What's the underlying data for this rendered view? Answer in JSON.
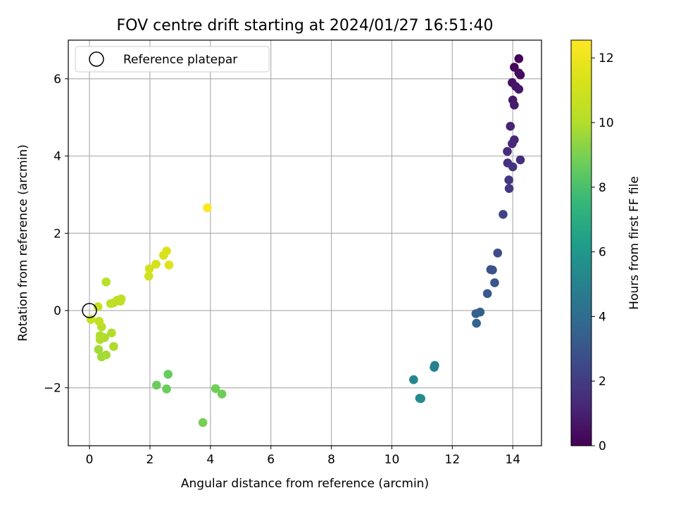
{
  "chart_data": {
    "type": "scatter",
    "title": "FOV centre drift starting at 2024/01/27 16:51:40",
    "xlabel": "Angular distance from reference (arcmin)",
    "ylabel": "Rotation from reference (arcmin)",
    "xlim": [
      -0.7,
      14.95
    ],
    "ylim": [
      -3.5,
      7.0
    ],
    "xticks": [
      0,
      2,
      4,
      6,
      8,
      10,
      12,
      14
    ],
    "yticks": [
      -2,
      0,
      2,
      4,
      6
    ],
    "grid": true,
    "legend": {
      "location": "upper-left",
      "entries": [
        "Reference platepar"
      ]
    },
    "reference_point": {
      "x": 0,
      "y": 0
    },
    "colorbar": {
      "label": "Hours from first FF file",
      "colormap": "viridis",
      "range": [
        0,
        12.55
      ],
      "ticks": [
        0,
        2,
        4,
        6,
        8,
        10,
        12
      ]
    },
    "points": [
      {
        "x": 14.2,
        "y": 6.52,
        "c": 0.1
      },
      {
        "x": 14.05,
        "y": 6.3,
        "c": 0.2
      },
      {
        "x": 14.2,
        "y": 6.15,
        "c": 0.3
      },
      {
        "x": 14.25,
        "y": 6.1,
        "c": 0.4
      },
      {
        "x": 13.98,
        "y": 5.9,
        "c": 0.5
      },
      {
        "x": 14.1,
        "y": 5.8,
        "c": 0.6
      },
      {
        "x": 14.2,
        "y": 5.73,
        "c": 0.7
      },
      {
        "x": 14.0,
        "y": 5.45,
        "c": 0.8
      },
      {
        "x": 14.05,
        "y": 5.32,
        "c": 0.9
      },
      {
        "x": 13.92,
        "y": 4.77,
        "c": 1.1
      },
      {
        "x": 14.05,
        "y": 4.42,
        "c": 1.2
      },
      {
        "x": 13.98,
        "y": 4.32,
        "c": 1.3
      },
      {
        "x": 13.82,
        "y": 4.12,
        "c": 1.4
      },
      {
        "x": 14.25,
        "y": 3.9,
        "c": 1.5
      },
      {
        "x": 13.83,
        "y": 3.82,
        "c": 1.6
      },
      {
        "x": 14.0,
        "y": 3.72,
        "c": 1.7
      },
      {
        "x": 13.87,
        "y": 3.38,
        "c": 1.8
      },
      {
        "x": 13.88,
        "y": 3.16,
        "c": 1.9
      },
      {
        "x": 13.68,
        "y": 2.49,
        "c": 2.3
      },
      {
        "x": 13.5,
        "y": 1.49,
        "c": 2.6
      },
      {
        "x": 13.27,
        "y": 1.06,
        "c": 2.8
      },
      {
        "x": 13.33,
        "y": 1.05,
        "c": 2.9
      },
      {
        "x": 13.4,
        "y": 0.72,
        "c": 3.0
      },
      {
        "x": 13.16,
        "y": 0.44,
        "c": 3.2
      },
      {
        "x": 12.92,
        "y": -0.04,
        "c": 3.4
      },
      {
        "x": 12.78,
        "y": -0.08,
        "c": 3.5
      },
      {
        "x": 12.8,
        "y": -0.33,
        "c": 3.6
      },
      {
        "x": 11.42,
        "y": -1.42,
        "c": 4.9
      },
      {
        "x": 11.4,
        "y": -1.47,
        "c": 5.0
      },
      {
        "x": 10.72,
        "y": -1.79,
        "c": 5.2
      },
      {
        "x": 10.92,
        "y": -2.27,
        "c": 5.3
      },
      {
        "x": 10.96,
        "y": -2.28,
        "c": 5.4
      },
      {
        "x": 2.6,
        "y": -1.65,
        "c": 8.6
      },
      {
        "x": 2.22,
        "y": -1.93,
        "c": 8.7
      },
      {
        "x": 2.55,
        "y": -2.03,
        "c": 8.7
      },
      {
        "x": 4.17,
        "y": -2.02,
        "c": 8.8
      },
      {
        "x": 4.38,
        "y": -2.16,
        "c": 8.8
      },
      {
        "x": 3.75,
        "y": -2.9,
        "c": 8.9
      },
      {
        "x": 0.3,
        "y": -1.01,
        "c": 9.7
      },
      {
        "x": 0.4,
        "y": -1.2,
        "c": 9.7
      },
      {
        "x": 0.55,
        "y": -1.15,
        "c": 9.8
      },
      {
        "x": 0.8,
        "y": -0.93,
        "c": 9.9
      },
      {
        "x": 0.5,
        "y": -0.7,
        "c": 9.9
      },
      {
        "x": 0.35,
        "y": -0.65,
        "c": 10.0
      },
      {
        "x": 0.35,
        "y": -0.75,
        "c": 10.0
      },
      {
        "x": 0.73,
        "y": -0.58,
        "c": 10.0
      },
      {
        "x": 0.4,
        "y": -0.42,
        "c": 10.1
      },
      {
        "x": 0.55,
        "y": 0.74,
        "c": 10.2
      },
      {
        "x": 0.7,
        "y": 0.18,
        "c": 10.3
      },
      {
        "x": 0.8,
        "y": 0.2,
        "c": 10.3
      },
      {
        "x": 0.92,
        "y": 0.27,
        "c": 10.4
      },
      {
        "x": 1.05,
        "y": 0.3,
        "c": 10.4
      },
      {
        "x": 1.02,
        "y": 0.24,
        "c": 10.5
      },
      {
        "x": 0.32,
        "y": -0.28,
        "c": 10.6
      },
      {
        "x": 0.28,
        "y": 0.1,
        "c": 10.6
      },
      {
        "x": 0.05,
        "y": -0.23,
        "c": 10.7
      },
      {
        "x": 1.96,
        "y": 0.89,
        "c": 11.0
      },
      {
        "x": 1.98,
        "y": 1.08,
        "c": 11.1
      },
      {
        "x": 2.2,
        "y": 1.2,
        "c": 11.2
      },
      {
        "x": 2.45,
        "y": 1.43,
        "c": 11.3
      },
      {
        "x": 2.55,
        "y": 1.54,
        "c": 11.4
      },
      {
        "x": 2.63,
        "y": 1.18,
        "c": 11.5
      },
      {
        "x": 3.9,
        "y": 2.66,
        "c": 12.5
      }
    ]
  }
}
